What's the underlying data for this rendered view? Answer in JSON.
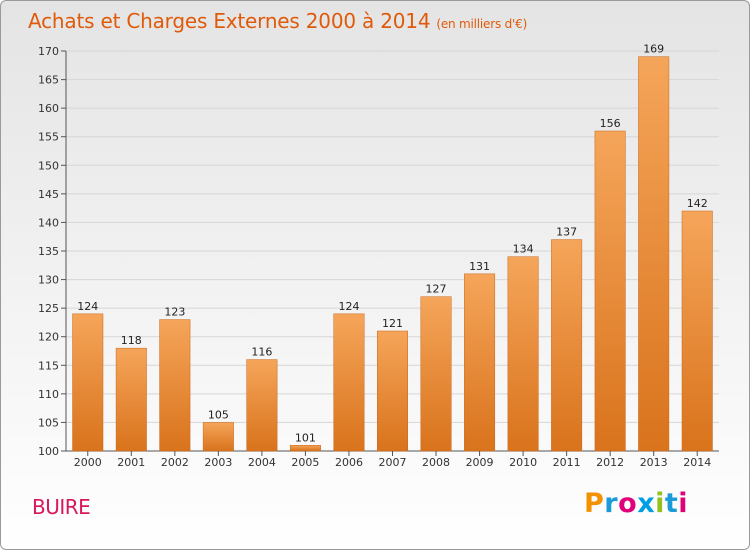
{
  "title": "Achats et Charges Externes 2000 à 2014",
  "unit": "(en milliers d'€)",
  "commune": "BUIRE",
  "logo": {
    "text": "Proxiti",
    "letters": [
      "P",
      "r",
      "o",
      "x",
      "i",
      "t",
      "i"
    ],
    "colors": [
      "#f39200",
      "#1a9bd7",
      "#e2007a",
      "#009fe3",
      "#95c11f",
      "#1a9bd7",
      "#e2007a"
    ]
  },
  "colors": {
    "title": "#e05a0a",
    "commune": "#d8175c",
    "bar_top": "#f5a55a",
    "bar_bottom": "#d9731c"
  },
  "chart_data": {
    "type": "bar",
    "title": "Achats et Charges Externes 2000 à 2014",
    "ylabel": "",
    "xlabel": "",
    "ylim": [
      100,
      170
    ],
    "ytick_step": 5,
    "grid": true,
    "categories": [
      "2000",
      "2001",
      "2002",
      "2003",
      "2004",
      "2005",
      "2006",
      "2007",
      "2008",
      "2009",
      "2010",
      "2011",
      "2012",
      "2013",
      "2014"
    ],
    "values": [
      124,
      118,
      123,
      105,
      116,
      101,
      124,
      121,
      127,
      131,
      134,
      137,
      156,
      169,
      142
    ]
  }
}
